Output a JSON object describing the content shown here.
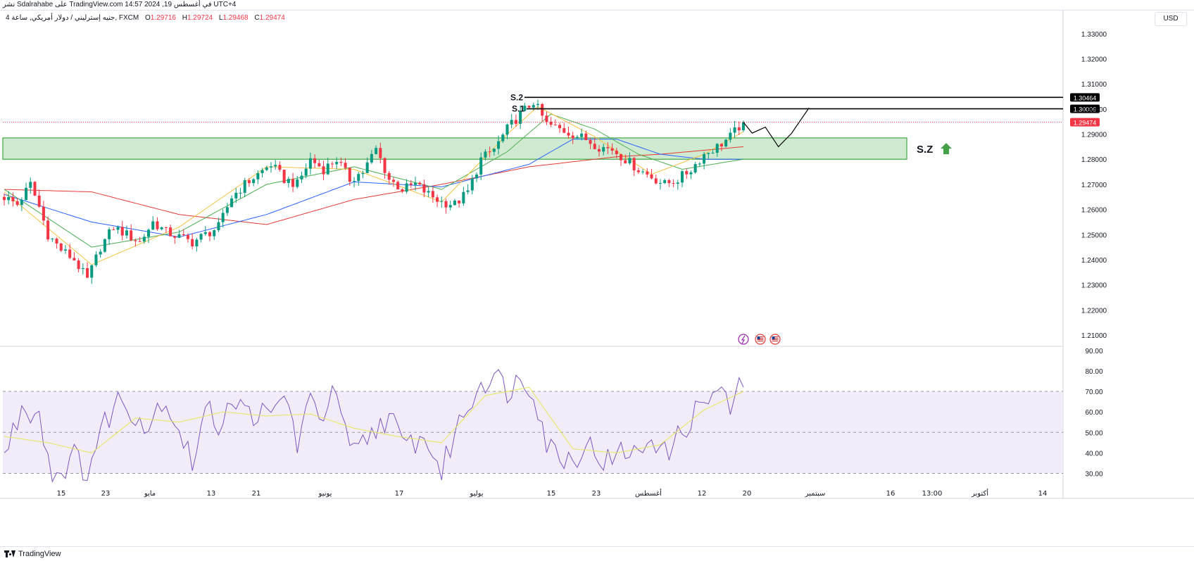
{
  "header": {
    "publish_line": "نشر Sdalrahabe على TradingView.com في أغسطس 19, 2024 14:57 UTC+4",
    "symbol_line": "جنيه إسترليني / دولار أمريكي, ساعة 4, FXCM",
    "o_label": "O",
    "o_value": "1.29716",
    "h_label": "H",
    "h_value": "1.29724",
    "l_label": "L",
    "l_value": "1.29468",
    "c_label": "C",
    "c_value": "1.29474"
  },
  "currency_button": "USD",
  "footer": {
    "brand": "TradingView"
  },
  "colors": {
    "up": "#089981",
    "down": "#f23645",
    "ma_short": "#f5c342",
    "ma_mid": "#4caf50",
    "ma_long": "#2962ff",
    "ma_longest": "#e53935",
    "zone_fill": "#c8e6c9",
    "zone_border": "#4caf50",
    "rsi_line": "#7e57c2",
    "rsi_ma": "#e8e65a",
    "rsi_band": "#ede7f6"
  },
  "chart_data": [
    {
      "type": "candlestick",
      "x_tick_labels": [
        "15",
        "23",
        "مايو",
        "13",
        "21",
        "يونيو",
        "17",
        "يوليو",
        "15",
        "23",
        "أغسطس",
        "12",
        "20",
        "سبتمبر",
        "16",
        "13:00",
        "أكتوبر",
        "14"
      ],
      "y_tick_labels": [
        "1.33000",
        "1.32000",
        "1.31000",
        "1.30000",
        "1.29000",
        "1.28000",
        "1.27000",
        "1.26000",
        "1.25000",
        "1.24000",
        "1.23000",
        "1.22000",
        "1.21000"
      ],
      "ylim": [
        1.2055,
        1.3395
      ],
      "price_path": [
        [
          0,
          1.265
        ],
        [
          3,
          1.262
        ],
        [
          6,
          1.27
        ],
        [
          8,
          1.261
        ],
        [
          10,
          1.25
        ],
        [
          13,
          1.244
        ],
        [
          16,
          1.24
        ],
        [
          19,
          1.232
        ],
        [
          22,
          1.245
        ],
        [
          25,
          1.253
        ],
        [
          28,
          1.25
        ],
        [
          31,
          1.247
        ],
        [
          34,
          1.255
        ],
        [
          37,
          1.251
        ],
        [
          40,
          1.249
        ],
        [
          43,
          1.247
        ],
        [
          46,
          1.25
        ],
        [
          49,
          1.253
        ],
        [
          52,
          1.265
        ],
        [
          55,
          1.27
        ],
        [
          58,
          1.274
        ],
        [
          61,
          1.278
        ],
        [
          64,
          1.272
        ],
        [
          67,
          1.27
        ],
        [
          70,
          1.28
        ],
        [
          73,
          1.276
        ],
        [
          76,
          1.28
        ],
        [
          79,
          1.272
        ],
        [
          82,
          1.275
        ],
        [
          85,
          1.284
        ],
        [
          88,
          1.272
        ],
        [
          91,
          1.268
        ],
        [
          94,
          1.27
        ],
        [
          97,
          1.266
        ],
        [
          100,
          1.263
        ],
        [
          103,
          1.262
        ],
        [
          106,
          1.267
        ],
        [
          109,
          1.28
        ],
        [
          112,
          1.284
        ],
        [
          115,
          1.292
        ],
        [
          118,
          1.298
        ],
        [
          121,
          1.303
        ],
        [
          124,
          1.294
        ],
        [
          127,
          1.292
        ],
        [
          130,
          1.29
        ],
        [
          133,
          1.288
        ],
        [
          136,
          1.285
        ],
        [
          139,
          1.284
        ],
        [
          142,
          1.28
        ],
        [
          145,
          1.276
        ],
        [
          148,
          1.273
        ],
        [
          151,
          1.27
        ],
        [
          154,
          1.272
        ],
        [
          157,
          1.276
        ],
        [
          160,
          1.282
        ],
        [
          163,
          1.285
        ],
        [
          166,
          1.289
        ],
        [
          169,
          1.295
        ]
      ],
      "candle_count": 170,
      "last_price": "1.29474",
      "moving_averages": [
        {
          "color_key": "ma_longest",
          "values": [
            [
              0,
              1.268
            ],
            [
              20,
              1.267
            ],
            [
              40,
              1.258
            ],
            [
              60,
              1.254
            ],
            [
              80,
              1.264
            ],
            [
              100,
              1.27
            ],
            [
              120,
              1.277
            ],
            [
              140,
              1.281
            ],
            [
              150,
              1.282
            ],
            [
              169,
              1.285
            ]
          ]
        },
        {
          "color_key": "ma_long",
          "values": [
            [
              0,
              1.266
            ],
            [
              20,
              1.255
            ],
            [
              40,
              1.249
            ],
            [
              60,
              1.258
            ],
            [
              80,
              1.271
            ],
            [
              100,
              1.269
            ],
            [
              120,
              1.278
            ],
            [
              130,
              1.288
            ],
            [
              140,
              1.288
            ],
            [
              150,
              1.282
            ],
            [
              160,
              1.28
            ],
            [
              169,
              1.28
            ]
          ]
        },
        {
          "color_key": "ma_mid",
          "values": [
            [
              0,
              1.268
            ],
            [
              20,
              1.245
            ],
            [
              40,
              1.251
            ],
            [
              60,
              1.27
            ],
            [
              80,
              1.277
            ],
            [
              100,
              1.268
            ],
            [
              115,
              1.283
            ],
            [
              125,
              1.298
            ],
            [
              135,
              1.292
            ],
            [
              145,
              1.282
            ],
            [
              155,
              1.276
            ],
            [
              169,
              1.28
            ]
          ]
        },
        {
          "color_key": "ma_short",
          "values": [
            [
              0,
              1.267
            ],
            [
              20,
              1.238
            ],
            [
              40,
              1.253
            ],
            [
              60,
              1.277
            ],
            [
              80,
              1.276
            ],
            [
              100,
              1.263
            ],
            [
              115,
              1.29
            ],
            [
              122,
              1.301
            ],
            [
              135,
              1.289
            ],
            [
              148,
              1.274
            ],
            [
              160,
              1.282
            ],
            [
              169,
              1.291
            ]
          ]
        }
      ],
      "levels": [
        {
          "label": "S.2",
          "price": 1.30464,
          "tag": "1.30464"
        },
        {
          "label": "S.1",
          "price": 1.30009,
          "tag": "1.30009"
        }
      ],
      "zone": {
        "label": "S.Z",
        "top": 1.2885,
        "bottom": 1.28
      },
      "projection": [
        [
          169,
          1.2947
        ],
        [
          171,
          1.2904
        ],
        [
          174,
          1.2928
        ],
        [
          177,
          1.285
        ],
        [
          180,
          1.2903
        ],
        [
          184,
          1.3005
        ]
      ]
    },
    {
      "type": "line",
      "y_tick_labels": [
        "90.00",
        "80.00",
        "70.00",
        "60.00",
        "50.00",
        "40.00",
        "30.00"
      ],
      "ylim": [
        24,
        92
      ],
      "band": [
        30,
        70
      ],
      "midline": 50,
      "rsi_path": [
        [
          0,
          38
        ],
        [
          4,
          62
        ],
        [
          8,
          60
        ],
        [
          11,
          28
        ],
        [
          16,
          38
        ],
        [
          19,
          31
        ],
        [
          23,
          55
        ],
        [
          26,
          66
        ],
        [
          30,
          60
        ],
        [
          33,
          52
        ],
        [
          36,
          67
        ],
        [
          39,
          57
        ],
        [
          43,
          35
        ],
        [
          46,
          61
        ],
        [
          49,
          54
        ],
        [
          52,
          68
        ],
        [
          55,
          59
        ],
        [
          58,
          60
        ],
        [
          61,
          56
        ],
        [
          64,
          70
        ],
        [
          67,
          45
        ],
        [
          70,
          64
        ],
        [
          73,
          60
        ],
        [
          76,
          70
        ],
        [
          79,
          38
        ],
        [
          82,
          44
        ],
        [
          85,
          52
        ],
        [
          88,
          59
        ],
        [
          91,
          43
        ],
        [
          94,
          46
        ],
        [
          97,
          45
        ],
        [
          100,
          30
        ],
        [
          103,
          50
        ],
        [
          106,
          63
        ],
        [
          109,
          75
        ],
        [
          112,
          78
        ],
        [
          115,
          71
        ],
        [
          118,
          76
        ],
        [
          121,
          72
        ],
        [
          124,
          45
        ],
        [
          127,
          39
        ],
        [
          130,
          37
        ],
        [
          133,
          45
        ],
        [
          136,
          38
        ],
        [
          139,
          35
        ],
        [
          142,
          42
        ],
        [
          145,
          38
        ],
        [
          148,
          50
        ],
        [
          151,
          39
        ],
        [
          154,
          47
        ],
        [
          157,
          57
        ],
        [
          160,
          65
        ],
        [
          163,
          70
        ],
        [
          166,
          62
        ],
        [
          169,
          74
        ]
      ],
      "rsi_ma_path": [
        [
          0,
          48
        ],
        [
          10,
          45
        ],
        [
          20,
          40
        ],
        [
          30,
          57
        ],
        [
          40,
          55
        ],
        [
          50,
          60
        ],
        [
          60,
          58
        ],
        [
          70,
          59
        ],
        [
          80,
          52
        ],
        [
          90,
          48
        ],
        [
          100,
          45
        ],
        [
          110,
          68
        ],
        [
          120,
          72
        ],
        [
          130,
          42
        ],
        [
          140,
          40
        ],
        [
          150,
          44
        ],
        [
          160,
          61
        ],
        [
          169,
          70
        ]
      ]
    }
  ]
}
